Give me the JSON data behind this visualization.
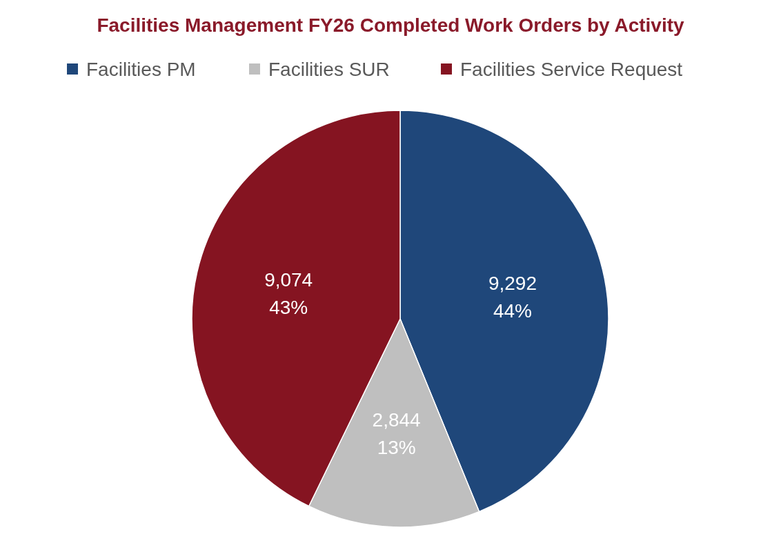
{
  "chart_data": {
    "type": "pie",
    "title": "Facilities Management FY26 Completed Work Orders by Activity",
    "categories": [
      "Facilities PM",
      "Facilities SUR",
      "Facilities Service Request"
    ],
    "values": [
      9292,
      2844,
      9074
    ],
    "colors": [
      "#1f477a",
      "#bfbfbf",
      "#851421"
    ],
    "value_labels": [
      "9,292\n44%",
      "2,844\n13%",
      "9,074\n43%"
    ],
    "legend": "top"
  }
}
